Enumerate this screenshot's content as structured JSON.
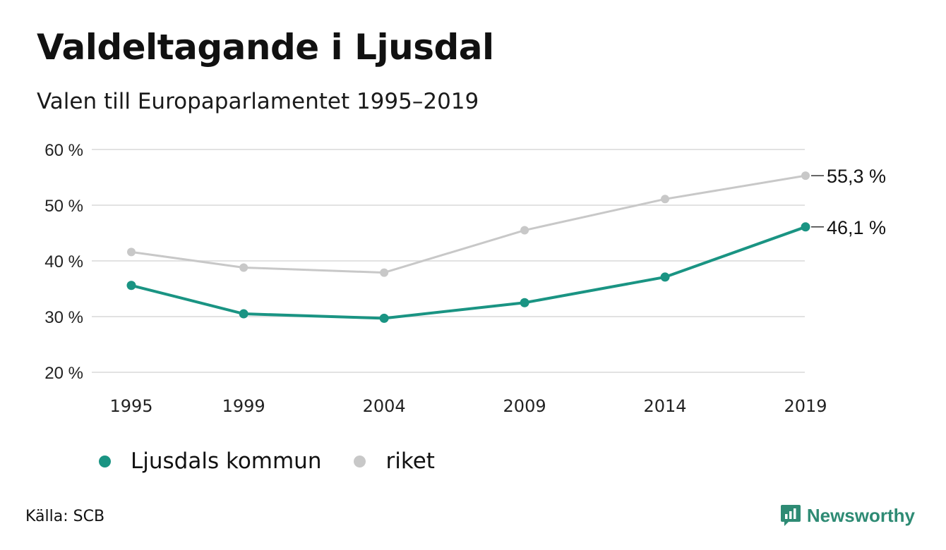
{
  "title": "Valdeltagande i Ljusdal",
  "subtitle": "Valen till Europaparlamentet 1995–2019",
  "source": "Källa: SCB",
  "brand": "Newsworthy",
  "colors": {
    "ljusdal": "#1a9483",
    "riket": "#c8c8c8",
    "grid": "#e2e2e2",
    "brand": "#2e8b74"
  },
  "chart_data": {
    "type": "line",
    "title": "Valdeltagande i Ljusdal",
    "subtitle": "Valen till Europaparlamentet 1995–2019",
    "categories": [
      "1995",
      "1999",
      "2004",
      "2009",
      "2014",
      "2019"
    ],
    "x": [
      1995,
      1999,
      2004,
      2009,
      2014,
      2019
    ],
    "ylim": [
      20,
      60
    ],
    "yticks": [
      20,
      30,
      40,
      50,
      60
    ],
    "ytick_labels": [
      "20 %",
      "30 %",
      "40 %",
      "50 %",
      "60 %"
    ],
    "grid": "horizontal",
    "legend_position": "bottom-left",
    "series": [
      {
        "name": "Ljusdals kommun",
        "values": [
          35.6,
          30.5,
          29.7,
          32.5,
          37.1,
          46.1
        ],
        "end_label": "46,1 %"
      },
      {
        "name": "riket",
        "values": [
          41.6,
          38.8,
          37.9,
          45.5,
          51.1,
          55.3
        ],
        "end_label": "55,3 %"
      }
    ]
  }
}
